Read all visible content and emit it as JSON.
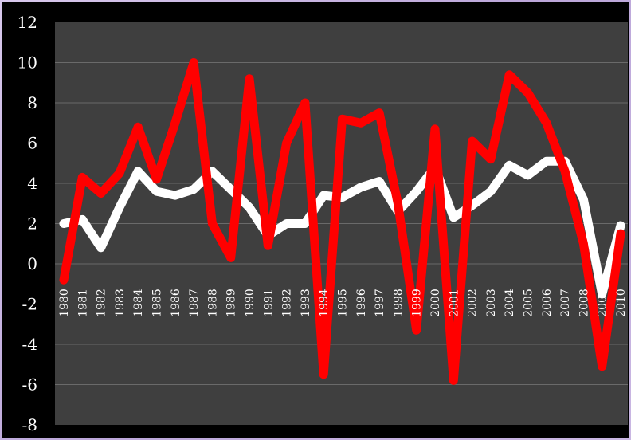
{
  "chart_data": {
    "type": "line",
    "title": "",
    "xlabel": "",
    "ylabel": "",
    "ylim": [
      -8,
      12
    ],
    "yticks": [
      -8,
      -6,
      -4,
      -2,
      0,
      2,
      4,
      6,
      8,
      10,
      12
    ],
    "grid": true,
    "legend": "none",
    "x": [
      "1980",
      "1981",
      "1982",
      "1983",
      "1984",
      "1985",
      "1986",
      "1987",
      "1988",
      "1989",
      "1990",
      "1991",
      "1992",
      "1993",
      "1994",
      "1995",
      "1996",
      "1997",
      "1998",
      "1999",
      "2000",
      "2001",
      "2002",
      "2003",
      "2004",
      "2005",
      "2006",
      "2007",
      "2008",
      "2009",
      "2010"
    ],
    "series": [
      {
        "color": "#ffffff",
        "values": [
          2.0,
          2.2,
          0.8,
          2.8,
          4.6,
          3.6,
          3.4,
          3.7,
          4.6,
          3.7,
          2.8,
          1.4,
          2.0,
          2.0,
          3.4,
          3.3,
          3.8,
          4.1,
          2.6,
          3.6,
          4.8,
          2.3,
          2.9,
          3.6,
          4.9,
          4.4,
          5.1,
          5.1,
          3.2,
          -1.5,
          1.9
        ]
      },
      {
        "color": "#ff0000",
        "values": [
          -0.8,
          4.3,
          3.5,
          4.5,
          6.8,
          4.2,
          7.0,
          10.0,
          2.0,
          0.3,
          9.2,
          0.9,
          6.0,
          8.0,
          -5.5,
          7.2,
          7.0,
          7.5,
          3.0,
          -3.3,
          6.7,
          -5.8,
          6.1,
          5.2,
          9.4,
          8.5,
          7.0,
          4.6,
          1.0,
          -5.1,
          1.5
        ]
      }
    ]
  }
}
